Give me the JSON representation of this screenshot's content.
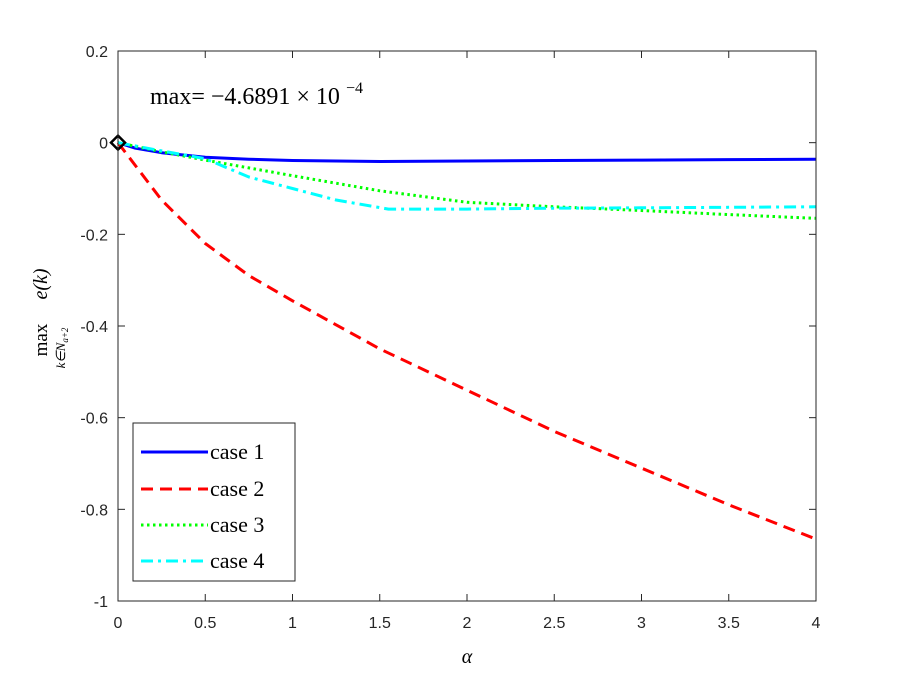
{
  "chart_data": {
    "type": "line",
    "title": "",
    "xlabel": "α",
    "ylabel": {
      "main": "max e(k)",
      "max_part": "max",
      "func_part": "e(k)",
      "subscript": "k∈N",
      "sub_subscript": "a+2"
    },
    "xlim": [
      0,
      4
    ],
    "ylim": [
      -1,
      0.2
    ],
    "xticks": [
      0,
      0.5,
      1,
      1.5,
      2,
      2.5,
      3,
      3.5,
      4
    ],
    "xtick_labels": [
      "0",
      "0.5",
      "1",
      "1.5",
      "2",
      "2.5",
      "3",
      "3.5",
      "4"
    ],
    "yticks": [
      -1,
      -0.8,
      -0.6,
      -0.4,
      -0.2,
      0,
      0.2
    ],
    "ytick_labels": [
      "-1",
      "-0.8",
      "-0.6",
      "-0.4",
      "-0.2",
      "0",
      "0.2"
    ],
    "grid": false,
    "legend_position": "bottom-left",
    "annotation": {
      "prefix": "max= ",
      "mantissa": "−4.6891 × 10",
      "exponent": "−4"
    },
    "marker": {
      "x": 0,
      "y": 0,
      "shape": "diamond"
    },
    "series": [
      {
        "name": "case 1",
        "color": "#0000ff",
        "dash": "solid",
        "x": [
          0,
          0.1,
          0.25,
          0.5,
          0.75,
          1,
          1.5,
          2,
          2.5,
          3,
          3.5,
          4
        ],
        "y": [
          0,
          -0.012,
          -0.022,
          -0.032,
          -0.036,
          -0.039,
          -0.041,
          -0.04,
          -0.039,
          -0.038,
          -0.037,
          -0.036
        ]
      },
      {
        "name": "case 2",
        "color": "#ff0000",
        "dash": "dashed",
        "x": [
          0,
          0.25,
          0.5,
          0.75,
          1,
          1.5,
          2,
          2.5,
          3,
          3.5,
          4
        ],
        "y": [
          0,
          -0.125,
          -0.22,
          -0.29,
          -0.345,
          -0.45,
          -0.54,
          -0.63,
          -0.71,
          -0.79,
          -0.865
        ]
      },
      {
        "name": "case 3",
        "color": "#00ff00",
        "dash": "dotted",
        "x": [
          0,
          0.25,
          0.5,
          0.75,
          1,
          1.5,
          1.9,
          2,
          2.5,
          3,
          3.5,
          4
        ],
        "y": [
          0,
          -0.02,
          -0.038,
          -0.055,
          -0.072,
          -0.105,
          -0.125,
          -0.13,
          -0.14,
          -0.148,
          -0.157,
          -0.165
        ]
      },
      {
        "name": "case 4",
        "color": "#00ffff",
        "dash": "dashdot",
        "x": [
          0,
          0.25,
          0.5,
          0.75,
          1,
          1.25,
          1.55,
          2,
          2.5,
          3,
          3.5,
          4
        ],
        "y": [
          0,
          -0.018,
          -0.035,
          -0.075,
          -0.1,
          -0.125,
          -0.145,
          -0.145,
          -0.143,
          -0.142,
          -0.141,
          -0.14
        ]
      }
    ]
  }
}
